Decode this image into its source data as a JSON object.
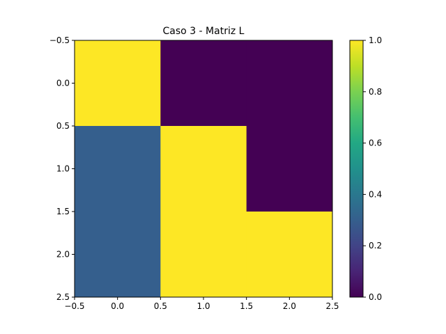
{
  "chart_data": {
    "type": "heatmap",
    "title": "Caso 3 - Matriz L",
    "xlabel": "",
    "ylabel": "",
    "matrix": [
      [
        1.0,
        0.0,
        0.0
      ],
      [
        0.3,
        1.0,
        0.0
      ],
      [
        0.3,
        1.0,
        1.0
      ]
    ],
    "xlim": [
      -0.5,
      2.5
    ],
    "ylim": [
      2.5,
      -0.5
    ],
    "x_ticks": [
      -0.5,
      0.0,
      0.5,
      1.0,
      1.5,
      2.0,
      2.5
    ],
    "y_ticks": [
      -0.5,
      0.0,
      0.5,
      1.0,
      1.5,
      2.0,
      2.5
    ],
    "x_tick_labels": [
      "−0.5",
      "0.0",
      "0.5",
      "1.0",
      "1.5",
      "2.0",
      "2.5"
    ],
    "y_tick_labels": [
      "−0.5",
      "0.0",
      "0.5",
      "1.0",
      "1.5",
      "2.0",
      "2.5"
    ],
    "colorbar": {
      "colormap": "viridis",
      "range": [
        0.0,
        1.0
      ],
      "ticks": [
        0.0,
        0.2,
        0.4,
        0.6,
        0.8,
        1.0
      ],
      "tick_labels": [
        "0.0",
        "0.2",
        "0.4",
        "0.6",
        "0.8",
        "1.0"
      ]
    },
    "grid": false
  }
}
